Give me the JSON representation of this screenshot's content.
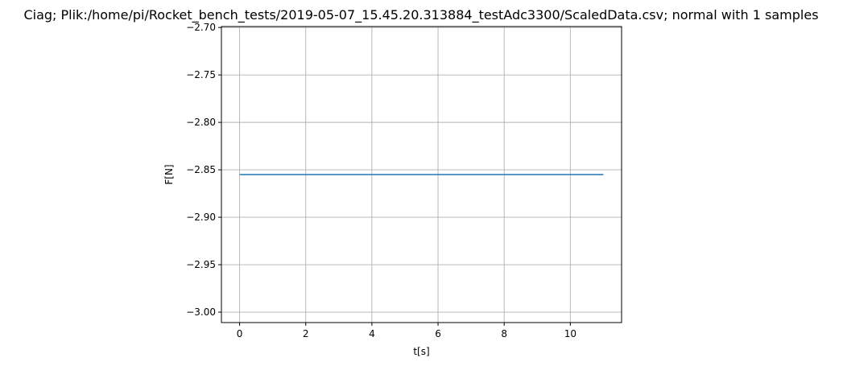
{
  "chart_data": {
    "type": "line",
    "title": "Ciag; Plik:/home/pi/Rocket_bench_tests/2019-05-07_15.45.20.313884_testAdc3300/ScaledData.csv; normal with 1 samples",
    "xlabel": "t[s]",
    "ylabel": "F[N]",
    "xlim": [
      -0.55,
      11.55
    ],
    "ylim": [
      -3.011,
      -2.699
    ],
    "grid": true,
    "x_ticks": [
      0,
      2,
      4,
      6,
      8,
      10
    ],
    "x_tick_labels": [
      "0",
      "2",
      "4",
      "6",
      "8",
      "10"
    ],
    "y_ticks": [
      -2.7,
      -2.75,
      -2.8,
      -2.85,
      -2.9,
      -2.95,
      -3.0
    ],
    "y_tick_labels": [
      "−2.70",
      "−2.75",
      "−2.80",
      "−2.85",
      "−2.90",
      "−2.95",
      "−3.00"
    ],
    "series": [
      {
        "name": "F",
        "color": "#1f77b4",
        "x": [
          0,
          11
        ],
        "y": [
          -2.855,
          -2.855
        ]
      }
    ]
  }
}
